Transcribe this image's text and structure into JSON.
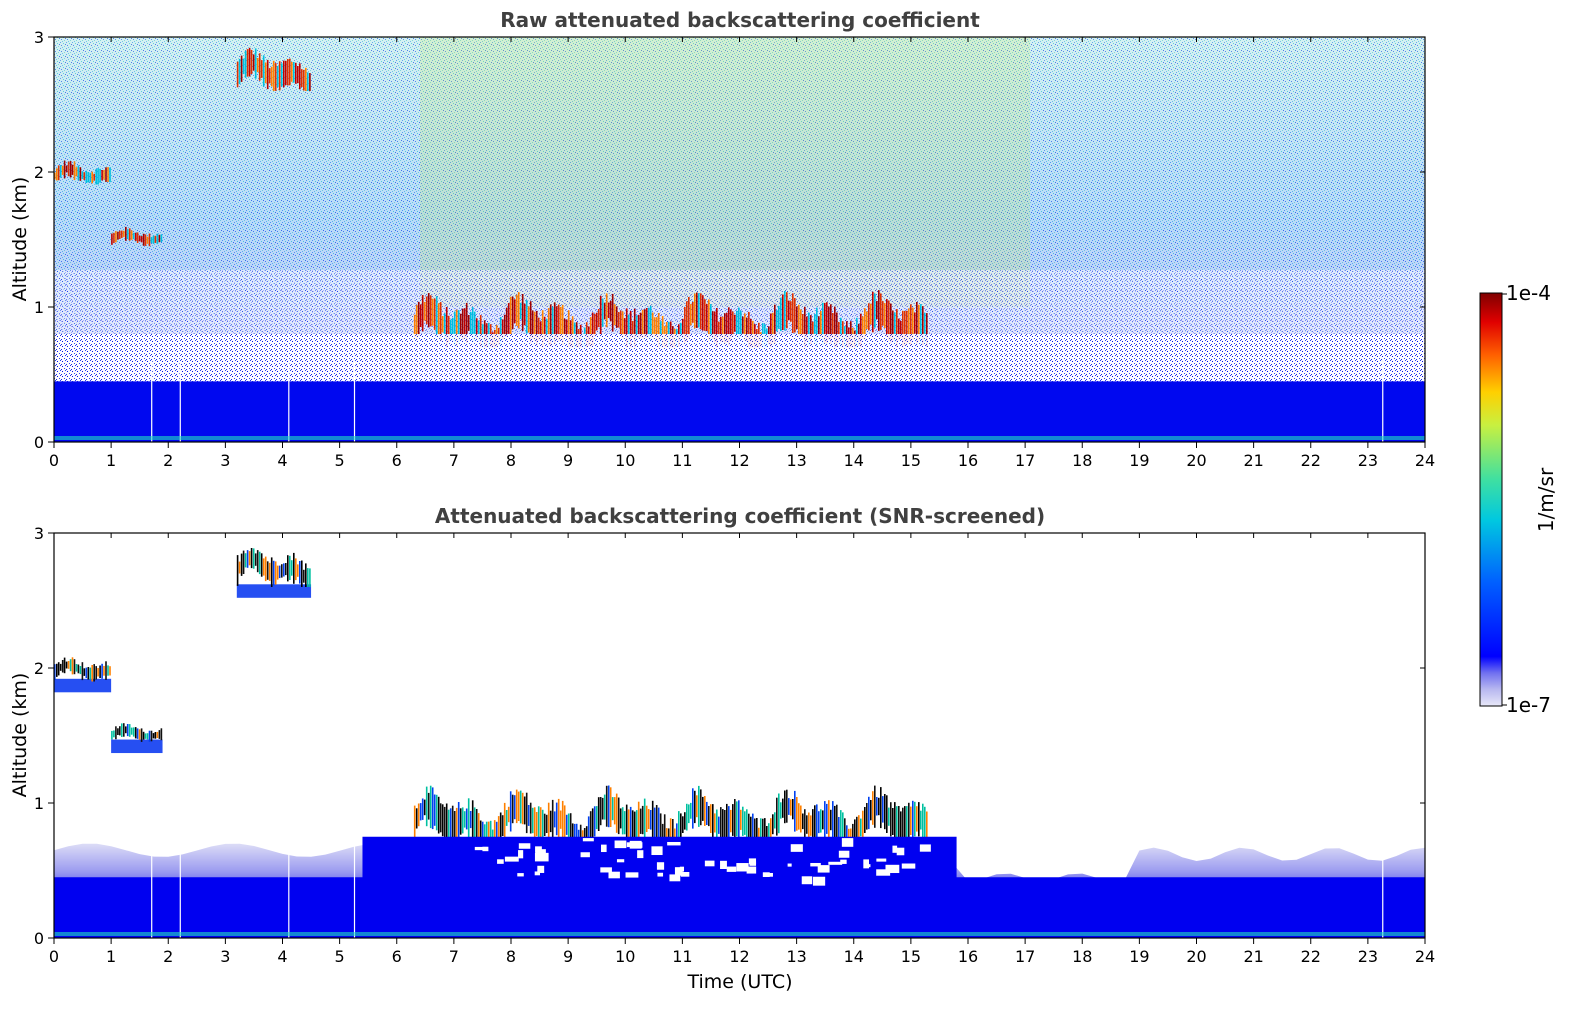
{
  "chart_data": [
    {
      "type": "heatmap",
      "title": "Raw attenuated backscattering coefficient",
      "xlabel": "",
      "ylabel": "Altitude (km)",
      "xlim": [
        0,
        24
      ],
      "ylim": [
        0,
        3
      ],
      "x_ticks": [
        "0",
        "1",
        "2",
        "3",
        "4",
        "5",
        "6",
        "7",
        "8",
        "9",
        "10",
        "11",
        "12",
        "13",
        "14",
        "15",
        "16",
        "17",
        "18",
        "19",
        "20",
        "21",
        "22",
        "23",
        "24"
      ],
      "y_ticks": [
        "0",
        "1",
        "2",
        "3"
      ],
      "features": [
        {
          "kind": "cloud",
          "t_start": 3.2,
          "t_end": 4.5,
          "alt_min": 2.6,
          "alt_max": 2.95
        },
        {
          "kind": "cloud",
          "t_start": 0.0,
          "t_end": 1.0,
          "alt_min": 1.9,
          "alt_max": 2.1
        },
        {
          "kind": "cloud",
          "t_start": 1.0,
          "t_end": 1.9,
          "alt_min": 1.45,
          "alt_max": 1.6
        },
        {
          "kind": "cloud",
          "t_start": 6.3,
          "t_end": 15.3,
          "alt_min": 0.7,
          "alt_max": 1.15
        },
        {
          "kind": "boundary-layer",
          "t_start": 0.0,
          "t_end": 24.0,
          "alt_min": 0.0,
          "alt_max": 0.45
        },
        {
          "kind": "data-gap",
          "t": [
            1.7,
            2.2,
            4.1,
            5.25,
            23.25
          ]
        }
      ]
    },
    {
      "type": "heatmap",
      "title": "Attenuated backscattering coefficient (SNR-screened)",
      "xlabel": "Time (UTC)",
      "ylabel": "Altitude (km)",
      "xlim": [
        0,
        24
      ],
      "ylim": [
        0,
        3
      ],
      "x_ticks": [
        "0",
        "1",
        "2",
        "3",
        "4",
        "5",
        "6",
        "7",
        "8",
        "9",
        "10",
        "11",
        "12",
        "13",
        "14",
        "15",
        "16",
        "17",
        "18",
        "19",
        "20",
        "21",
        "22",
        "23",
        "24"
      ],
      "y_ticks": [
        "0",
        "1",
        "2",
        "3"
      ],
      "features": [
        {
          "kind": "cloud",
          "t_start": 3.2,
          "t_end": 4.5,
          "alt_min": 2.6,
          "alt_max": 2.95
        },
        {
          "kind": "cloud",
          "t_start": 0.0,
          "t_end": 1.0,
          "alt_min": 1.9,
          "alt_max": 2.1
        },
        {
          "kind": "cloud",
          "t_start": 1.0,
          "t_end": 1.9,
          "alt_min": 1.45,
          "alt_max": 1.6
        },
        {
          "kind": "cloud",
          "t_start": 6.3,
          "t_end": 15.3,
          "alt_min": 0.7,
          "alt_max": 1.15
        },
        {
          "kind": "boundary-layer",
          "t_start": 0.0,
          "t_end": 24.0,
          "alt_min": 0.0,
          "alt_max": 0.6
        },
        {
          "kind": "data-gap",
          "t": [
            1.7,
            2.2,
            4.1,
            5.25,
            23.25
          ]
        }
      ]
    }
  ],
  "colorbar": {
    "label": "1/m/sr",
    "max_label": "1e-4",
    "min_label": "1e-7",
    "scale": "log",
    "colors": [
      "#e8e8f8",
      "#b8b8f0",
      "#7070f0",
      "#0000ff",
      "#0080ff",
      "#00c8e0",
      "#40e0a0",
      "#c8f040",
      "#ffd000",
      "#ff6000",
      "#e00000",
      "#800000"
    ]
  }
}
